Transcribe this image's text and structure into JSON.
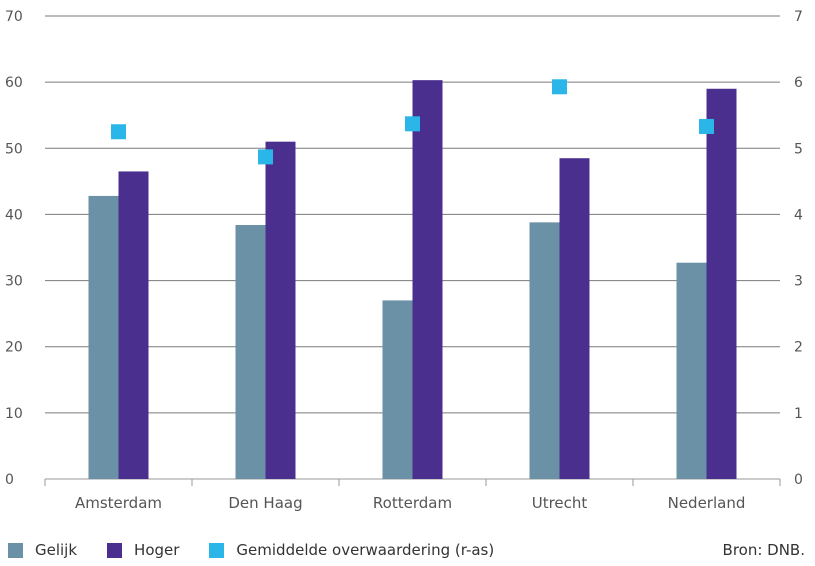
{
  "chart_data": {
    "type": "bar",
    "categories": [
      "Amsterdam",
      "Den Haag",
      "Rotterdam",
      "Utrecht",
      "Nederland"
    ],
    "series": [
      {
        "name": "Gelijk",
        "values": [
          42.8,
          38.4,
          27.0,
          38.8,
          32.7
        ],
        "color": "#6b91a6",
        "axis": "left",
        "kind": "bar"
      },
      {
        "name": "Hoger",
        "values": [
          46.5,
          51.0,
          60.3,
          48.5,
          59.0
        ],
        "color": "#4b2f8f",
        "axis": "left",
        "kind": "bar"
      },
      {
        "name": "Gemiddelde overwaardering (r-as)",
        "values": [
          5.25,
          4.87,
          5.37,
          5.93,
          5.33
        ],
        "color": "#2ab6e8",
        "axis": "right",
        "kind": "marker"
      }
    ],
    "ylim_left": [
      0,
      70
    ],
    "yticks_left": [
      0,
      10,
      20,
      30,
      40,
      50,
      60,
      70
    ],
    "ylim_right": [
      0,
      7
    ],
    "yticks_right": [
      0,
      1,
      2,
      3,
      4,
      5,
      6,
      7
    ],
    "grid": true,
    "legend_position": "bottom-left"
  },
  "legend": [
    {
      "label": "Gelijk",
      "color": "#6b91a6"
    },
    {
      "label": "Hoger",
      "color": "#4b2f8f"
    },
    {
      "label": "Gemiddelde overwaardering (r-as)",
      "color": "#2ab6e8"
    }
  ],
  "source": "Bron: DNB."
}
